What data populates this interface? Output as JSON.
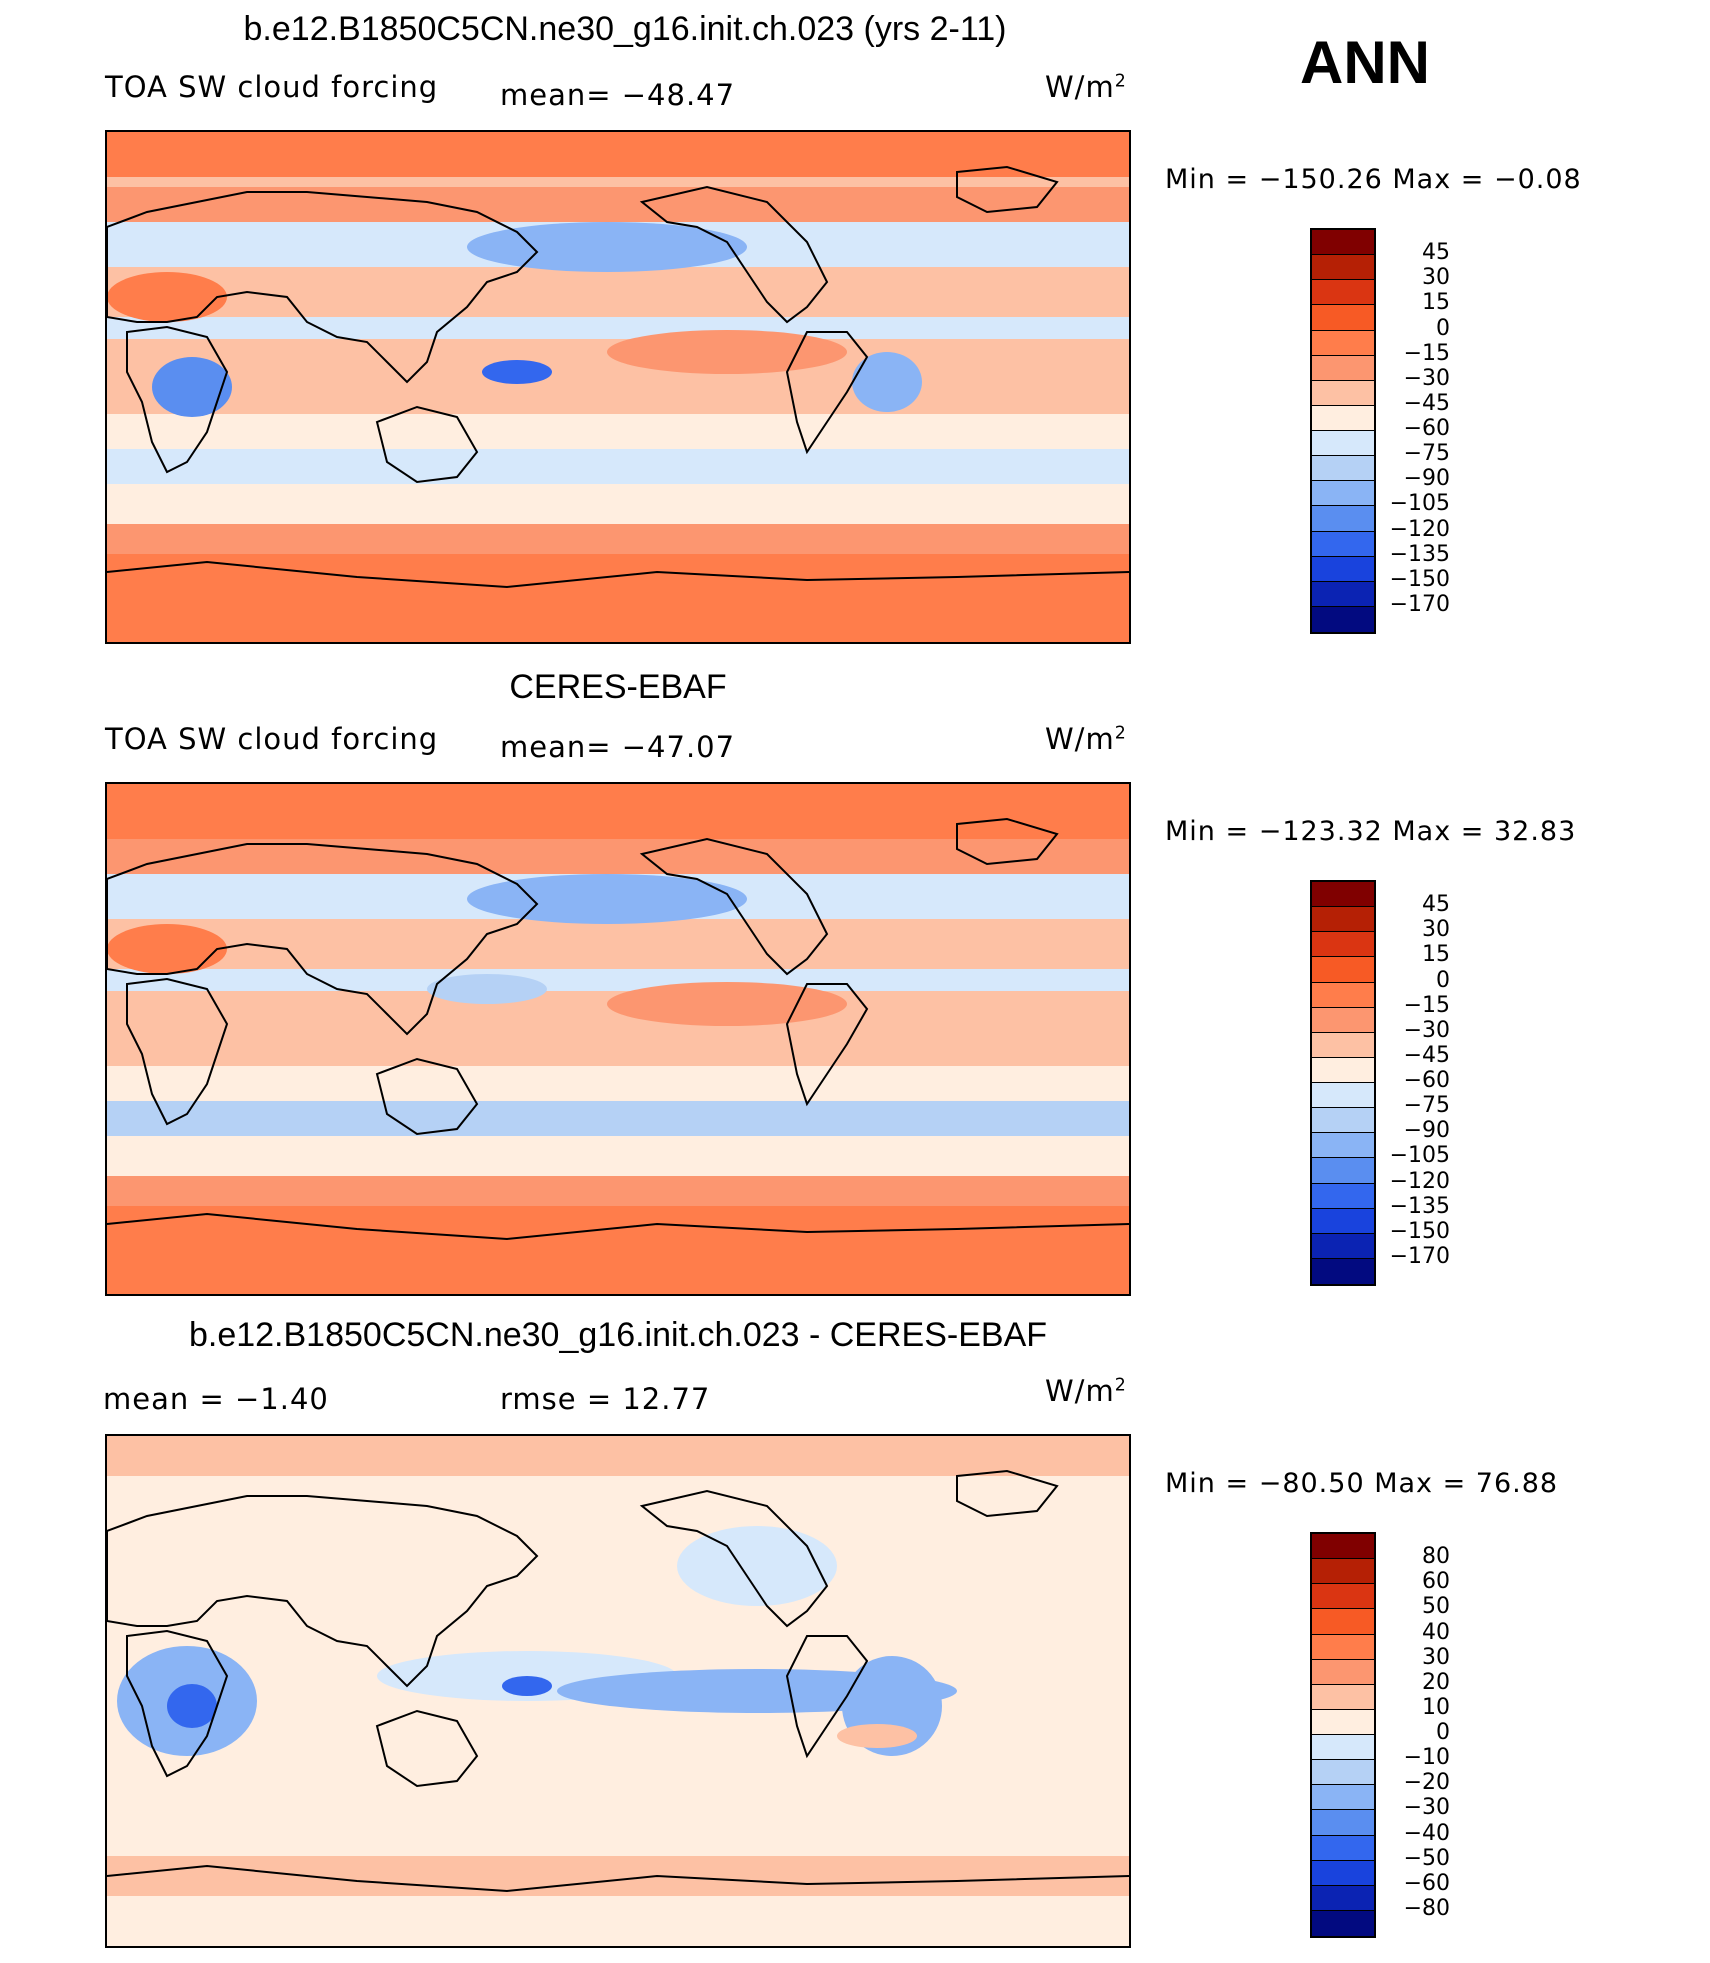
{
  "season": "ANN",
  "units_base": "W/m",
  "units_exp": "2",
  "panels": [
    {
      "id": "model",
      "title": "b.e12.B1850C5CN.ne30_g16.init.ch.023 (yrs 2-11)",
      "left_label": "TOA SW cloud forcing",
      "center_label": "mean= −48.47",
      "minmax": "Min = −150.26  Max =   −0.08",
      "scale": "abs"
    },
    {
      "id": "obs",
      "title": "CERES-EBAF",
      "left_label": "TOA SW cloud forcing",
      "center_label": "mean= −47.07",
      "minmax": "Min = −123.32  Max =   32.83",
      "scale": "abs"
    },
    {
      "id": "diff",
      "title": "b.e12.B1850C5CN.ne30_g16.init.ch.023 - CERES-EBAF",
      "left_label": "mean =   −1.40",
      "center_label": "rmse =   12.77",
      "minmax": "Min = −80.50  Max =   76.88",
      "scale": "diff"
    }
  ],
  "colorbars": {
    "abs": {
      "labels": [
        "45",
        "30",
        "15",
        "0",
        "−15",
        "−30",
        "−45",
        "−60",
        "−75",
        "−90",
        "−105",
        "−120",
        "−135",
        "−150",
        "−170"
      ],
      "colors": [
        "#800000",
        "#b52005",
        "#da3512",
        "#f75a25",
        "#ff7d4b",
        "#fc9670",
        "#fdc1a4",
        "#ffeee0",
        "#d6e8fb",
        "#b5d1f5",
        "#8ab4f5",
        "#5a8ef0",
        "#3367ee",
        "#1943dd",
        "#0b23b3",
        "#020a80"
      ]
    },
    "diff": {
      "labels": [
        "80",
        "60",
        "50",
        "40",
        "30",
        "20",
        "10",
        "0",
        "−10",
        "−20",
        "−30",
        "−40",
        "−50",
        "−60",
        "−80"
      ],
      "colors": [
        "#800000",
        "#b52005",
        "#da3512",
        "#f75a25",
        "#ff7d4b",
        "#fc9670",
        "#fdc1a4",
        "#ffeee0",
        "#d6e8fb",
        "#b5d1f5",
        "#8ab4f5",
        "#5a8ef0",
        "#3367ee",
        "#1943dd",
        "#0b23b3",
        "#020a80"
      ]
    }
  },
  "map_colors": {
    "polar": "#ff7d4b",
    "subpolar": "#fc9670",
    "midlat": "#fdc1a4",
    "storm": "#d6e8fb",
    "storm_strong": "#b5d1f5",
    "itcz": "#d6e8fb",
    "subtrop": "#fdc1a4",
    "land_dry": "#ff7d4b",
    "blue1": "#8ab4f5",
    "blue2": "#5a8ef0",
    "blue3": "#3367ee",
    "cream": "#ffeee0",
    "salmon": "#fdc1a4",
    "coast": "#000000"
  }
}
